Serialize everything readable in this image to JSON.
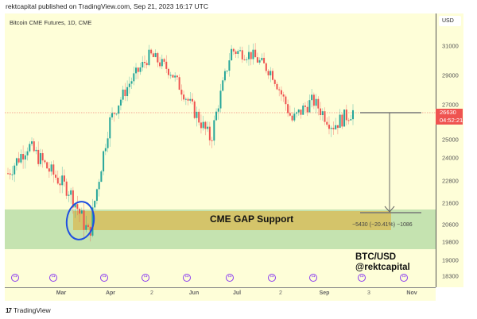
{
  "header": {
    "published": "rektcapital published on TradingView.com, Sep 21, 2023 16:17 UTC",
    "symbol_title": "Bitcoin CME Futures, 1D, CME"
  },
  "price_axis": {
    "currency": "USD",
    "current_price": "26630",
    "countdown": "04:52:21"
  },
  "annotations": {
    "zone_label": "CME GAP Support",
    "measure_text": "−5430 (−20.41%) −1086",
    "watermark_line1": "BTC/USD",
    "watermark_line2": "@rektcapital"
  },
  "footer": {
    "brand": "TradingView",
    "brand_mark": "17"
  },
  "colors": {
    "background": "#fefed8",
    "up": "#26a69a",
    "down": "#ef5350",
    "green_zone": "#c5e3b0",
    "gap_zone": "#d4c46a",
    "circle": "#1f4fe0",
    "event_icon": "#8b3df0",
    "measure_line": "#777777"
  },
  "chart_data": {
    "type": "candlestick",
    "title": "Bitcoin CME Futures, 1D, CME",
    "xlabel": "",
    "ylabel": "USD",
    "y_ticks": [
      31000,
      29000,
      27000,
      25000,
      24000,
      22800,
      21600,
      20600,
      19800,
      19000,
      18300
    ],
    "x_ticks": [
      "Mar",
      "Apr",
      "2",
      "Jun",
      "Jul",
      "2",
      "Sep",
      "3",
      "Nov"
    ],
    "grid": false,
    "current_price": 26630,
    "zones": [
      {
        "name": "Green support zone",
        "low": 19600,
        "high": 21000
      },
      {
        "name": "CME GAP Support",
        "low": 20350,
        "high": 20950
      }
    ],
    "measurement": {
      "from": 26630,
      "to": 21200,
      "change": -5430,
      "change_pct": -20.41,
      "bars": -1086
    },
    "approx_closes": [
      {
        "date": "early Feb",
        "price": 23200
      },
      {
        "date": "mid Feb",
        "price": 24700
      },
      {
        "date": "late Feb",
        "price": 23400
      },
      {
        "date": "early Mar",
        "price": 22300
      },
      {
        "date": "Mar 10",
        "price": 20100
      },
      {
        "date": "mid Mar",
        "price": 26000
      },
      {
        "date": "early Apr",
        "price": 28500
      },
      {
        "date": "mid Apr",
        "price": 30400
      },
      {
        "date": "late Apr",
        "price": 29300
      },
      {
        "date": "mid May",
        "price": 27000
      },
      {
        "date": "mid Jun",
        "price": 25000
      },
      {
        "date": "late Jun",
        "price": 30700
      },
      {
        "date": "mid Jul",
        "price": 30400
      },
      {
        "date": "early Aug",
        "price": 29200
      },
      {
        "date": "mid Aug",
        "price": 26100
      },
      {
        "date": "late Aug",
        "price": 27300
      },
      {
        "date": "early Sep",
        "price": 25800
      },
      {
        "date": "Sep 21",
        "price": 26630
      }
    ]
  }
}
